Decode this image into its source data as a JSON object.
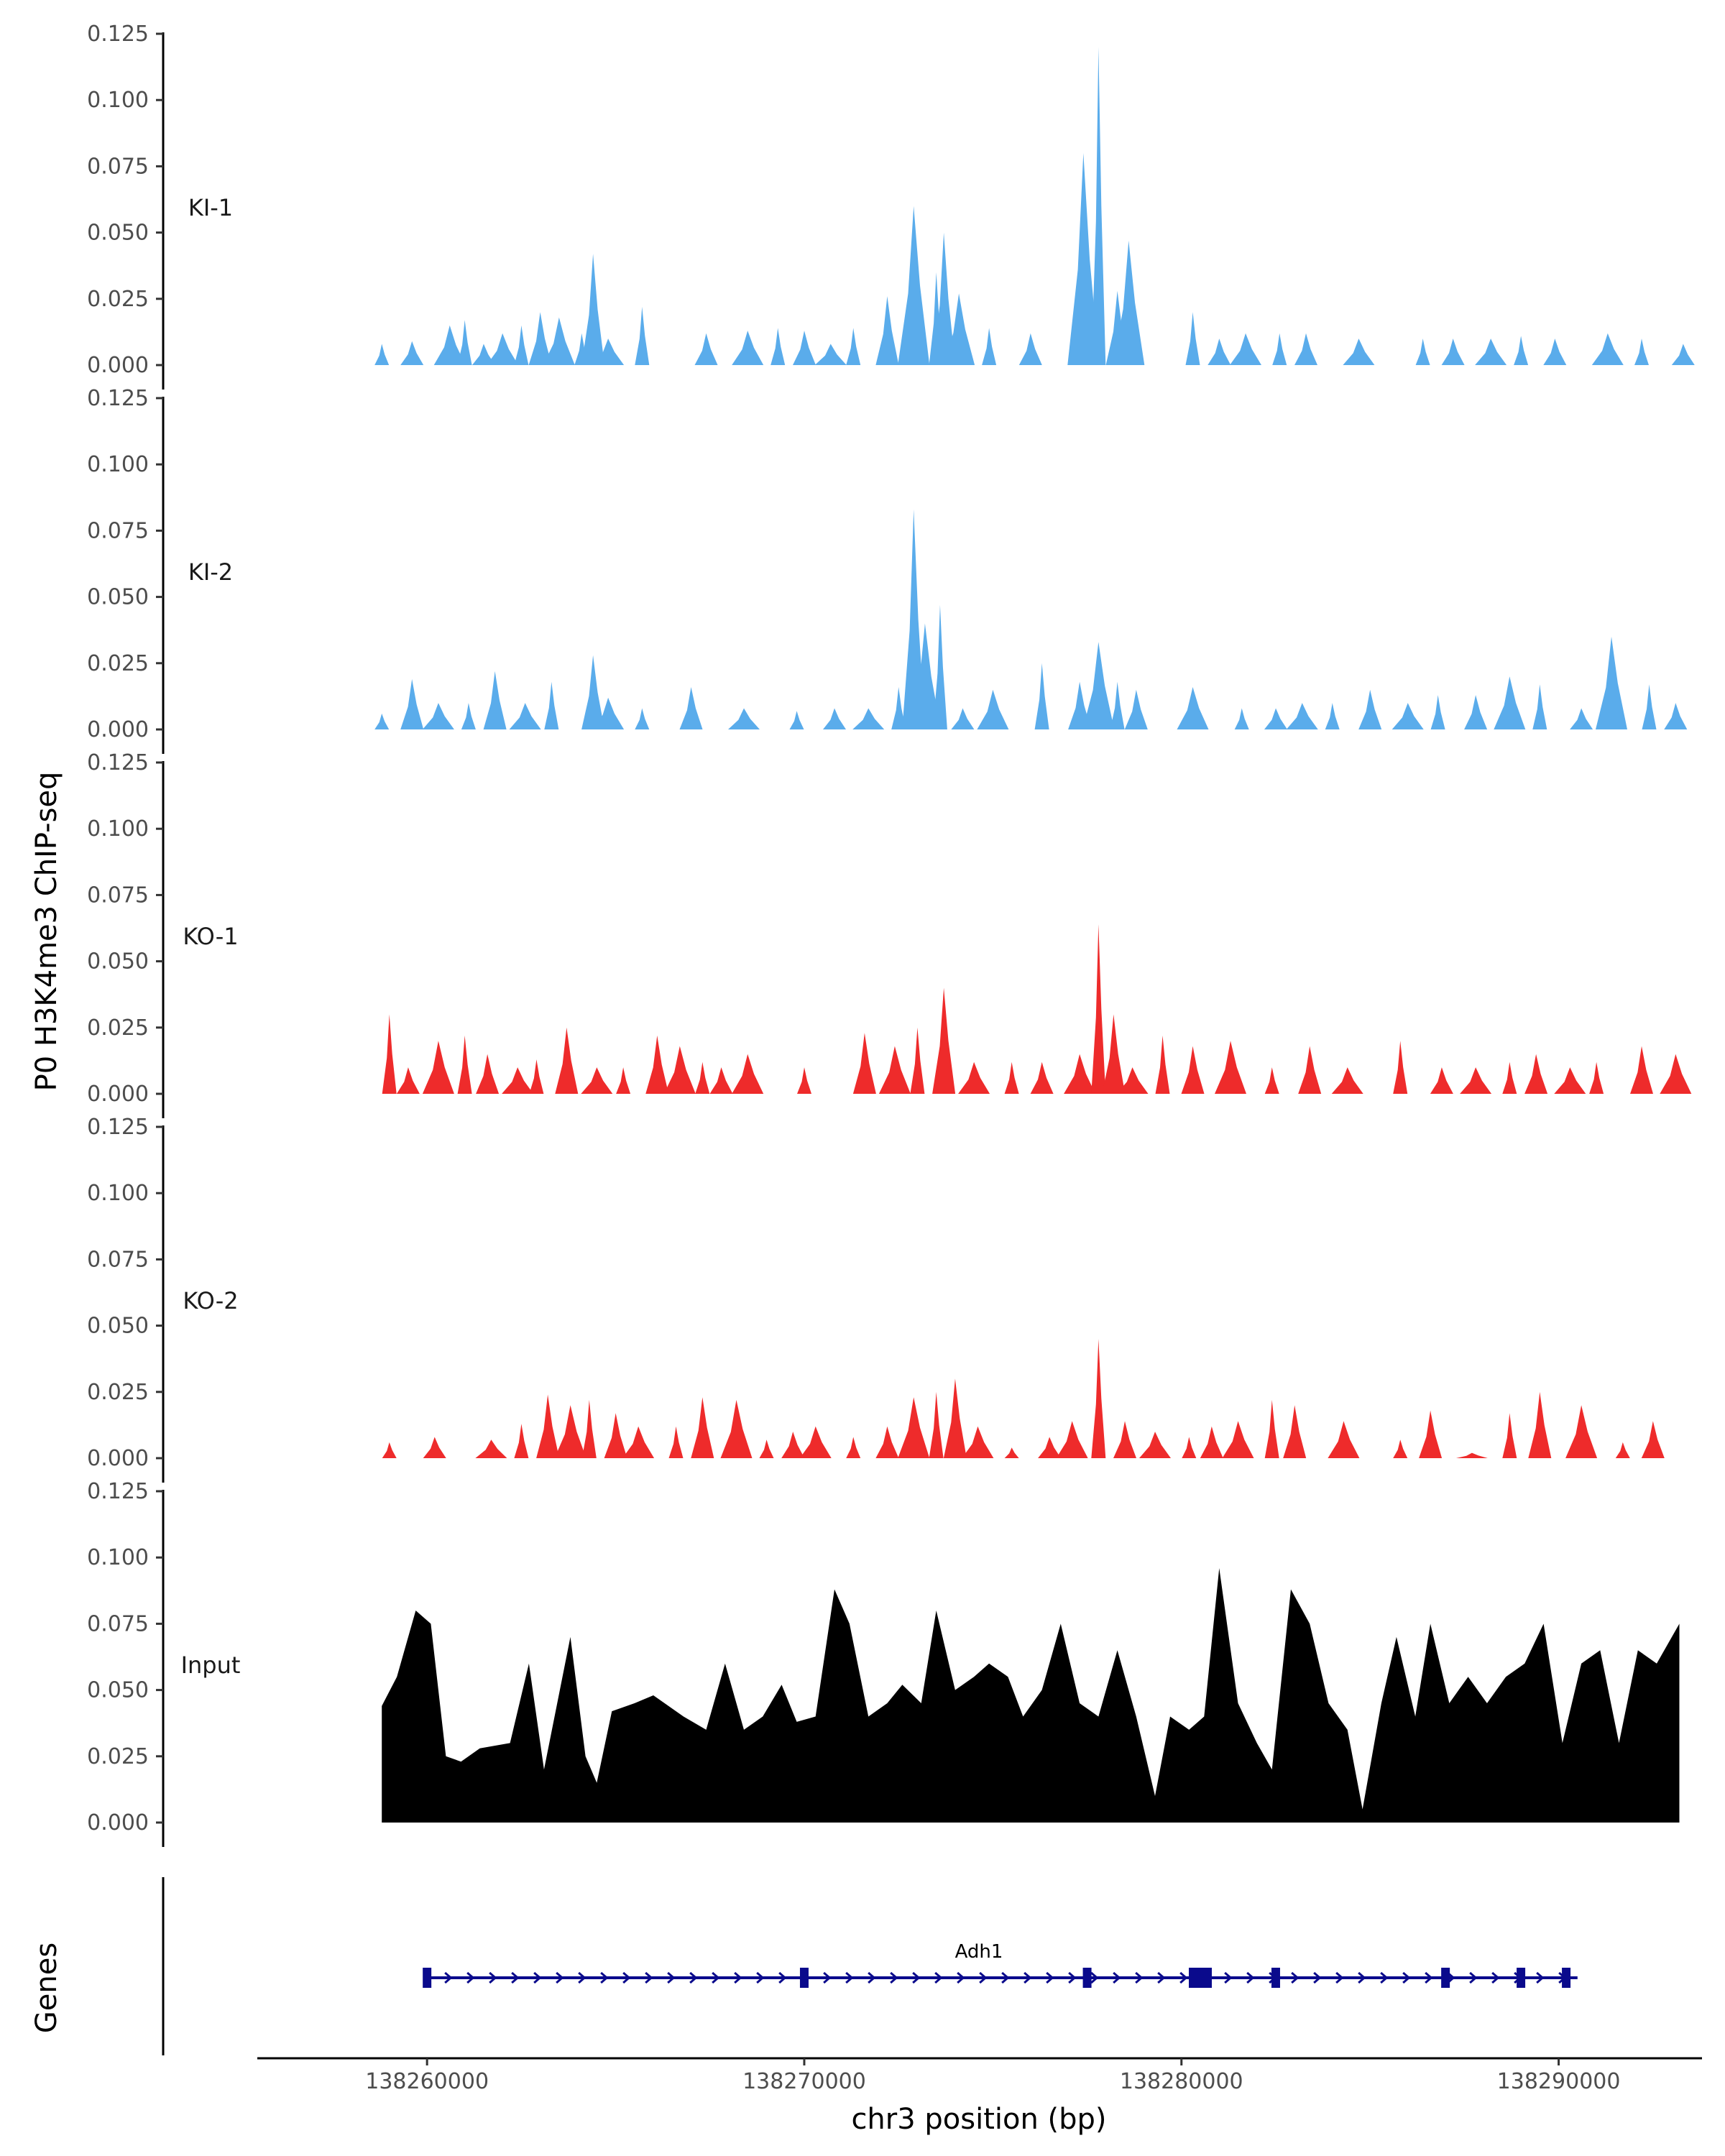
{
  "chart_data": {
    "type": "area",
    "title": "",
    "ylabel": "P0 H3K4me3 ChIP-seq",
    "xlabel": "chr3 position (bp)",
    "xlim": [
      138255500,
      138293800
    ],
    "ylim": [
      0,
      0.125
    ],
    "y_ticks": [
      "0.000",
      "0.025",
      "0.050",
      "0.075",
      "0.100",
      "0.125"
    ],
    "x_ticks": [
      {
        "value": 138260000,
        "label": "138260000"
      },
      {
        "value": 138270000,
        "label": "138270000"
      },
      {
        "value": 138280000,
        "label": "138280000"
      },
      {
        "value": 138290000,
        "label": "138290000"
      }
    ],
    "colors": {
      "KI": "#5aaceb",
      "KO": "#ee2b2b",
      "Input": "#000000",
      "gene": "#0a0a8c"
    },
    "tracks": [
      {
        "name": "KI-1",
        "color": "#5aaceb",
        "points": [
          [
            138258800,
            0.008
          ],
          [
            138259600,
            0.009
          ],
          [
            138260600,
            0.015
          ],
          [
            138261000,
            0.017
          ],
          [
            138261500,
            0.008
          ],
          [
            138262000,
            0.012
          ],
          [
            138262500,
            0.015
          ],
          [
            138263000,
            0.02
          ],
          [
            138263500,
            0.018
          ],
          [
            138264100,
            0.012
          ],
          [
            138264400,
            0.042
          ],
          [
            138264800,
            0.01
          ],
          [
            138265700,
            0.022
          ],
          [
            138267400,
            0.012
          ],
          [
            138268500,
            0.013
          ],
          [
            138269300,
            0.014
          ],
          [
            138270000,
            0.013
          ],
          [
            138270700,
            0.008
          ],
          [
            138271300,
            0.014
          ],
          [
            138272200,
            0.026
          ],
          [
            138272900,
            0.06
          ],
          [
            138273500,
            0.035
          ],
          [
            138273700,
            0.05
          ],
          [
            138274100,
            0.027
          ],
          [
            138274900,
            0.014
          ],
          [
            138276000,
            0.012
          ],
          [
            138277400,
            0.08
          ],
          [
            138277800,
            0.12
          ],
          [
            138278300,
            0.028
          ],
          [
            138278600,
            0.047
          ],
          [
            138280300,
            0.02
          ],
          [
            138281000,
            0.01
          ],
          [
            138281700,
            0.012
          ],
          [
            138282600,
            0.012
          ],
          [
            138283300,
            0.012
          ],
          [
            138284700,
            0.01
          ],
          [
            138286400,
            0.01
          ],
          [
            138287200,
            0.01
          ],
          [
            138288200,
            0.01
          ],
          [
            138289000,
            0.011
          ],
          [
            138289900,
            0.01
          ],
          [
            138291300,
            0.012
          ],
          [
            138292200,
            0.01
          ],
          [
            138293300,
            0.008
          ]
        ]
      },
      {
        "name": "KI-2",
        "color": "#5aaceb",
        "points": [
          [
            138258800,
            0.006
          ],
          [
            138259600,
            0.019
          ],
          [
            138260300,
            0.01
          ],
          [
            138261100,
            0.01
          ],
          [
            138261800,
            0.022
          ],
          [
            138262600,
            0.01
          ],
          [
            138263300,
            0.018
          ],
          [
            138264400,
            0.028
          ],
          [
            138264800,
            0.012
          ],
          [
            138265700,
            0.008
          ],
          [
            138267000,
            0.016
          ],
          [
            138268400,
            0.008
          ],
          [
            138269800,
            0.007
          ],
          [
            138270800,
            0.008
          ],
          [
            138271700,
            0.008
          ],
          [
            138272500,
            0.016
          ],
          [
            138272900,
            0.083
          ],
          [
            138273200,
            0.04
          ],
          [
            138273600,
            0.047
          ],
          [
            138274200,
            0.008
          ],
          [
            138275000,
            0.015
          ],
          [
            138276300,
            0.025
          ],
          [
            138277300,
            0.018
          ],
          [
            138277800,
            0.033
          ],
          [
            138278300,
            0.018
          ],
          [
            138278800,
            0.015
          ],
          [
            138280300,
            0.016
          ],
          [
            138281600,
            0.008
          ],
          [
            138282500,
            0.008
          ],
          [
            138283200,
            0.01
          ],
          [
            138284000,
            0.01
          ],
          [
            138285000,
            0.015
          ],
          [
            138286000,
            0.01
          ],
          [
            138286800,
            0.013
          ],
          [
            138287800,
            0.013
          ],
          [
            138288700,
            0.02
          ],
          [
            138289500,
            0.017
          ],
          [
            138290600,
            0.008
          ],
          [
            138291400,
            0.035
          ],
          [
            138292400,
            0.017
          ],
          [
            138293100,
            0.01
          ]
        ]
      },
      {
        "name": "KO-1",
        "color": "#ee2b2b",
        "points": [
          [
            138259000,
            0.03
          ],
          [
            138259500,
            0.01
          ],
          [
            138260300,
            0.02
          ],
          [
            138261000,
            0.022
          ],
          [
            138261600,
            0.015
          ],
          [
            138262400,
            0.01
          ],
          [
            138262900,
            0.013
          ],
          [
            138263700,
            0.025
          ],
          [
            138264500,
            0.01
          ],
          [
            138265200,
            0.01
          ],
          [
            138266100,
            0.022
          ],
          [
            138266700,
            0.018
          ],
          [
            138267300,
            0.012
          ],
          [
            138267800,
            0.01
          ],
          [
            138268500,
            0.015
          ],
          [
            138270000,
            0.01
          ],
          [
            138271600,
            0.023
          ],
          [
            138272400,
            0.018
          ],
          [
            138273000,
            0.025
          ],
          [
            138273700,
            0.04
          ],
          [
            138274500,
            0.012
          ],
          [
            138275500,
            0.012
          ],
          [
            138276300,
            0.012
          ],
          [
            138277300,
            0.015
          ],
          [
            138277800,
            0.064
          ],
          [
            138278200,
            0.03
          ],
          [
            138278700,
            0.01
          ],
          [
            138279500,
            0.022
          ],
          [
            138280300,
            0.018
          ],
          [
            138281300,
            0.02
          ],
          [
            138282400,
            0.01
          ],
          [
            138283400,
            0.018
          ],
          [
            138284400,
            0.01
          ],
          [
            138285800,
            0.02
          ],
          [
            138286900,
            0.01
          ],
          [
            138287800,
            0.01
          ],
          [
            138288700,
            0.012
          ],
          [
            138289400,
            0.015
          ],
          [
            138290300,
            0.01
          ],
          [
            138291000,
            0.012
          ],
          [
            138292200,
            0.018
          ],
          [
            138293100,
            0.015
          ]
        ]
      },
      {
        "name": "KO-2",
        "color": "#ee2b2b",
        "points": [
          [
            138259000,
            0.006
          ],
          [
            138260200,
            0.008
          ],
          [
            138261700,
            0.007
          ],
          [
            138262500,
            0.013
          ],
          [
            138263200,
            0.024
          ],
          [
            138263800,
            0.02
          ],
          [
            138264300,
            0.022
          ],
          [
            138265000,
            0.017
          ],
          [
            138265600,
            0.012
          ],
          [
            138266600,
            0.012
          ],
          [
            138267300,
            0.023
          ],
          [
            138268200,
            0.022
          ],
          [
            138269000,
            0.007
          ],
          [
            138269700,
            0.01
          ],
          [
            138270300,
            0.012
          ],
          [
            138271300,
            0.008
          ],
          [
            138272200,
            0.012
          ],
          [
            138272900,
            0.023
          ],
          [
            138273500,
            0.025
          ],
          [
            138274000,
            0.03
          ],
          [
            138274600,
            0.012
          ],
          [
            138275500,
            0.004
          ],
          [
            138276500,
            0.008
          ],
          [
            138277100,
            0.014
          ],
          [
            138277800,
            0.045
          ],
          [
            138278500,
            0.014
          ],
          [
            138279300,
            0.01
          ],
          [
            138280200,
            0.008
          ],
          [
            138280800,
            0.012
          ],
          [
            138281500,
            0.014
          ],
          [
            138282400,
            0.022
          ],
          [
            138283000,
            0.02
          ],
          [
            138284300,
            0.014
          ],
          [
            138285800,
            0.007
          ],
          [
            138286600,
            0.018
          ],
          [
            138287700,
            0.002
          ],
          [
            138288700,
            0.017
          ],
          [
            138289500,
            0.025
          ],
          [
            138290600,
            0.02
          ],
          [
            138291700,
            0.006
          ],
          [
            138292500,
            0.014
          ]
        ]
      },
      {
        "name": "Input",
        "color": "#000000",
        "points": [
          [
            138258800,
            0.044
          ],
          [
            138259200,
            0.055
          ],
          [
            138259700,
            0.08
          ],
          [
            138260100,
            0.075
          ],
          [
            138260500,
            0.025
          ],
          [
            138260900,
            0.023
          ],
          [
            138261400,
            0.028
          ],
          [
            138262200,
            0.03
          ],
          [
            138262700,
            0.06
          ],
          [
            138263100,
            0.02
          ],
          [
            138263800,
            0.07
          ],
          [
            138264200,
            0.025
          ],
          [
            138264500,
            0.015
          ],
          [
            138264900,
            0.042
          ],
          [
            138265500,
            0.045
          ],
          [
            138266000,
            0.048
          ],
          [
            138266800,
            0.04
          ],
          [
            138267400,
            0.035
          ],
          [
            138267900,
            0.06
          ],
          [
            138268400,
            0.035
          ],
          [
            138268900,
            0.04
          ],
          [
            138269400,
            0.052
          ],
          [
            138269800,
            0.038
          ],
          [
            138270300,
            0.04
          ],
          [
            138270800,
            0.088
          ],
          [
            138271200,
            0.075
          ],
          [
            138271700,
            0.04
          ],
          [
            138272200,
            0.045
          ],
          [
            138272600,
            0.052
          ],
          [
            138273100,
            0.045
          ],
          [
            138273500,
            0.08
          ],
          [
            138274000,
            0.05
          ],
          [
            138274500,
            0.055
          ],
          [
            138274900,
            0.06
          ],
          [
            138275400,
            0.055
          ],
          [
            138275800,
            0.04
          ],
          [
            138276300,
            0.05
          ],
          [
            138276800,
            0.075
          ],
          [
            138277300,
            0.045
          ],
          [
            138277800,
            0.04
          ],
          [
            138278300,
            0.065
          ],
          [
            138278800,
            0.04
          ],
          [
            138279300,
            0.01
          ],
          [
            138279700,
            0.04
          ],
          [
            138280200,
            0.035
          ],
          [
            138280600,
            0.04
          ],
          [
            138281000,
            0.096
          ],
          [
            138281500,
            0.045
          ],
          [
            138282000,
            0.03
          ],
          [
            138282400,
            0.02
          ],
          [
            138282900,
            0.088
          ],
          [
            138283400,
            0.075
          ],
          [
            138283900,
            0.045
          ],
          [
            138284400,
            0.035
          ],
          [
            138284800,
            0.005
          ],
          [
            138285300,
            0.045
          ],
          [
            138285700,
            0.07
          ],
          [
            138286200,
            0.04
          ],
          [
            138286600,
            0.075
          ],
          [
            138287100,
            0.045
          ],
          [
            138287600,
            0.055
          ],
          [
            138288100,
            0.045
          ],
          [
            138288600,
            0.055
          ],
          [
            138289100,
            0.06
          ],
          [
            138289600,
            0.075
          ],
          [
            138290100,
            0.03
          ],
          [
            138290600,
            0.06
          ],
          [
            138291100,
            0.065
          ],
          [
            138291600,
            0.03
          ],
          [
            138292100,
            0.065
          ],
          [
            138292600,
            0.06
          ],
          [
            138293200,
            0.075
          ]
        ]
      }
    ],
    "genes": [
      {
        "name": "Adh1",
        "start": 138260000,
        "end": 138290500,
        "strand": "+",
        "exons": [
          138260000,
          138270000,
          138277500,
          138280500,
          138282500,
          138287000,
          138289000,
          138290200
        ]
      }
    ],
    "gene_panel_label": "Genes"
  }
}
